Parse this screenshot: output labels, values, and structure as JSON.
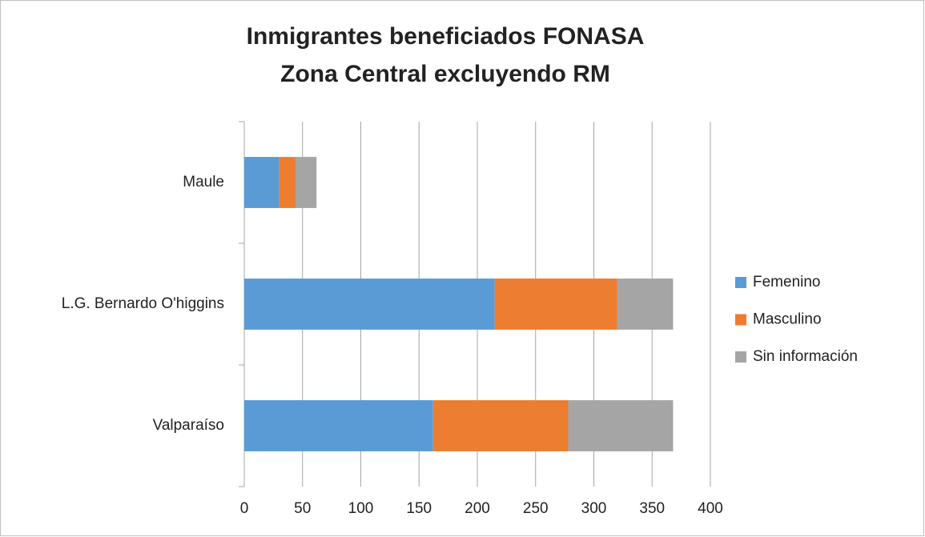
{
  "chart_data": {
    "type": "stacked_barh",
    "title": "Inmigrantes beneficiados FONASA",
    "subtitle": "Zona Central excluyendo RM",
    "categories": [
      "Valparaíso",
      "L.G. Bernardo O'higgins",
      "Maule"
    ],
    "series": [
      {
        "name": "Femenino",
        "color": "#5b9bd5",
        "values": [
          162,
          215,
          30
        ]
      },
      {
        "name": "Masculino",
        "color": "#ed7d31",
        "values": [
          116,
          105,
          14
        ]
      },
      {
        "name": "Sin información",
        "color": "#a5a5a5",
        "values": [
          90,
          48,
          18
        ]
      }
    ],
    "xlim": [
      0,
      400
    ],
    "xticks": [
      0,
      50,
      100,
      150,
      200,
      250,
      300,
      350,
      400
    ],
    "grid": true,
    "legend": "right"
  }
}
